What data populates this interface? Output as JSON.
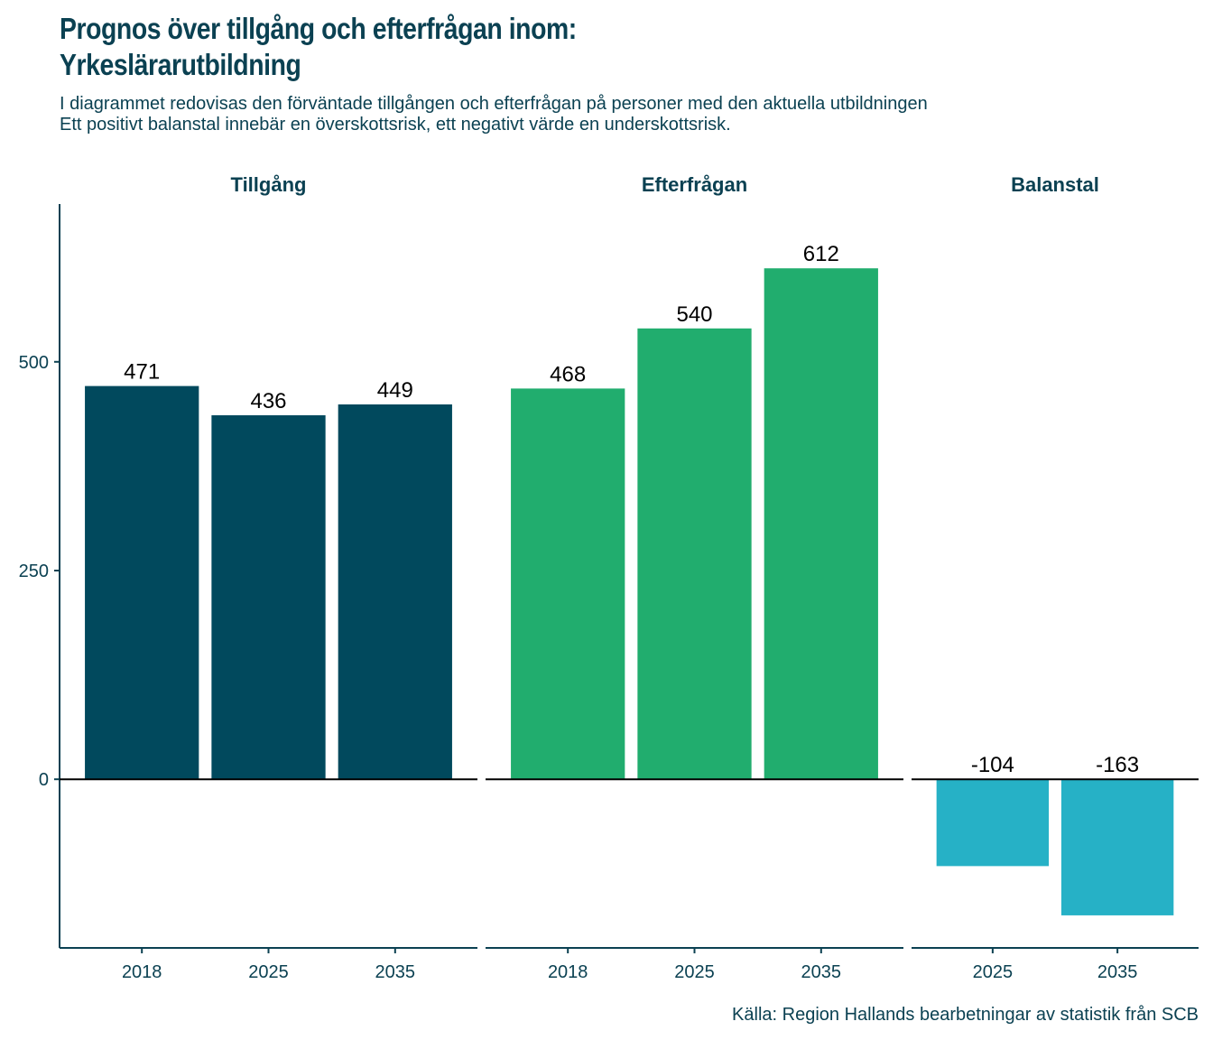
{
  "title_line1": "Prognos över tillgång och efterfrågan inom:",
  "title_line2": "Yrkeslärarutbildning",
  "subtitle_line1": "I diagrammet redovisas den förväntade tillgången och efterfrågan på personer med den aktuella utbildningen",
  "subtitle_line2": "Ett positivt balanstal innebär en överskottsrisk, ett negativt värde en underskottsrisk.",
  "caption": "Källa: Region Hallands bearbetningar av statistik från SCB",
  "chart_data": {
    "type": "bar",
    "title": "Prognos över tillgång och efterfrågan inom: Yrkeslärarutbildning",
    "xlabel": "",
    "ylabel": "",
    "ylim": [
      -202,
      689
    ],
    "yticks": [
      0,
      250,
      500
    ],
    "grid": false,
    "legend": "none",
    "facets": [
      {
        "name": "Tillgång",
        "color": "#01495d",
        "categories": [
          "2018",
          "2025",
          "2035"
        ],
        "values": [
          471,
          436,
          449
        ],
        "labels": [
          "471",
          "436",
          "449"
        ]
      },
      {
        "name": "Efterfrågan",
        "color": "#21ad6e",
        "categories": [
          "2018",
          "2025",
          "2035"
        ],
        "values": [
          468,
          540,
          612
        ],
        "labels": [
          "468",
          "540",
          "612"
        ]
      },
      {
        "name": "Balanstal",
        "color": "#26b1c6",
        "categories": [
          "2025",
          "2035"
        ],
        "values": [
          -104,
          -163
        ],
        "labels": [
          "-104",
          "-163"
        ]
      }
    ]
  }
}
